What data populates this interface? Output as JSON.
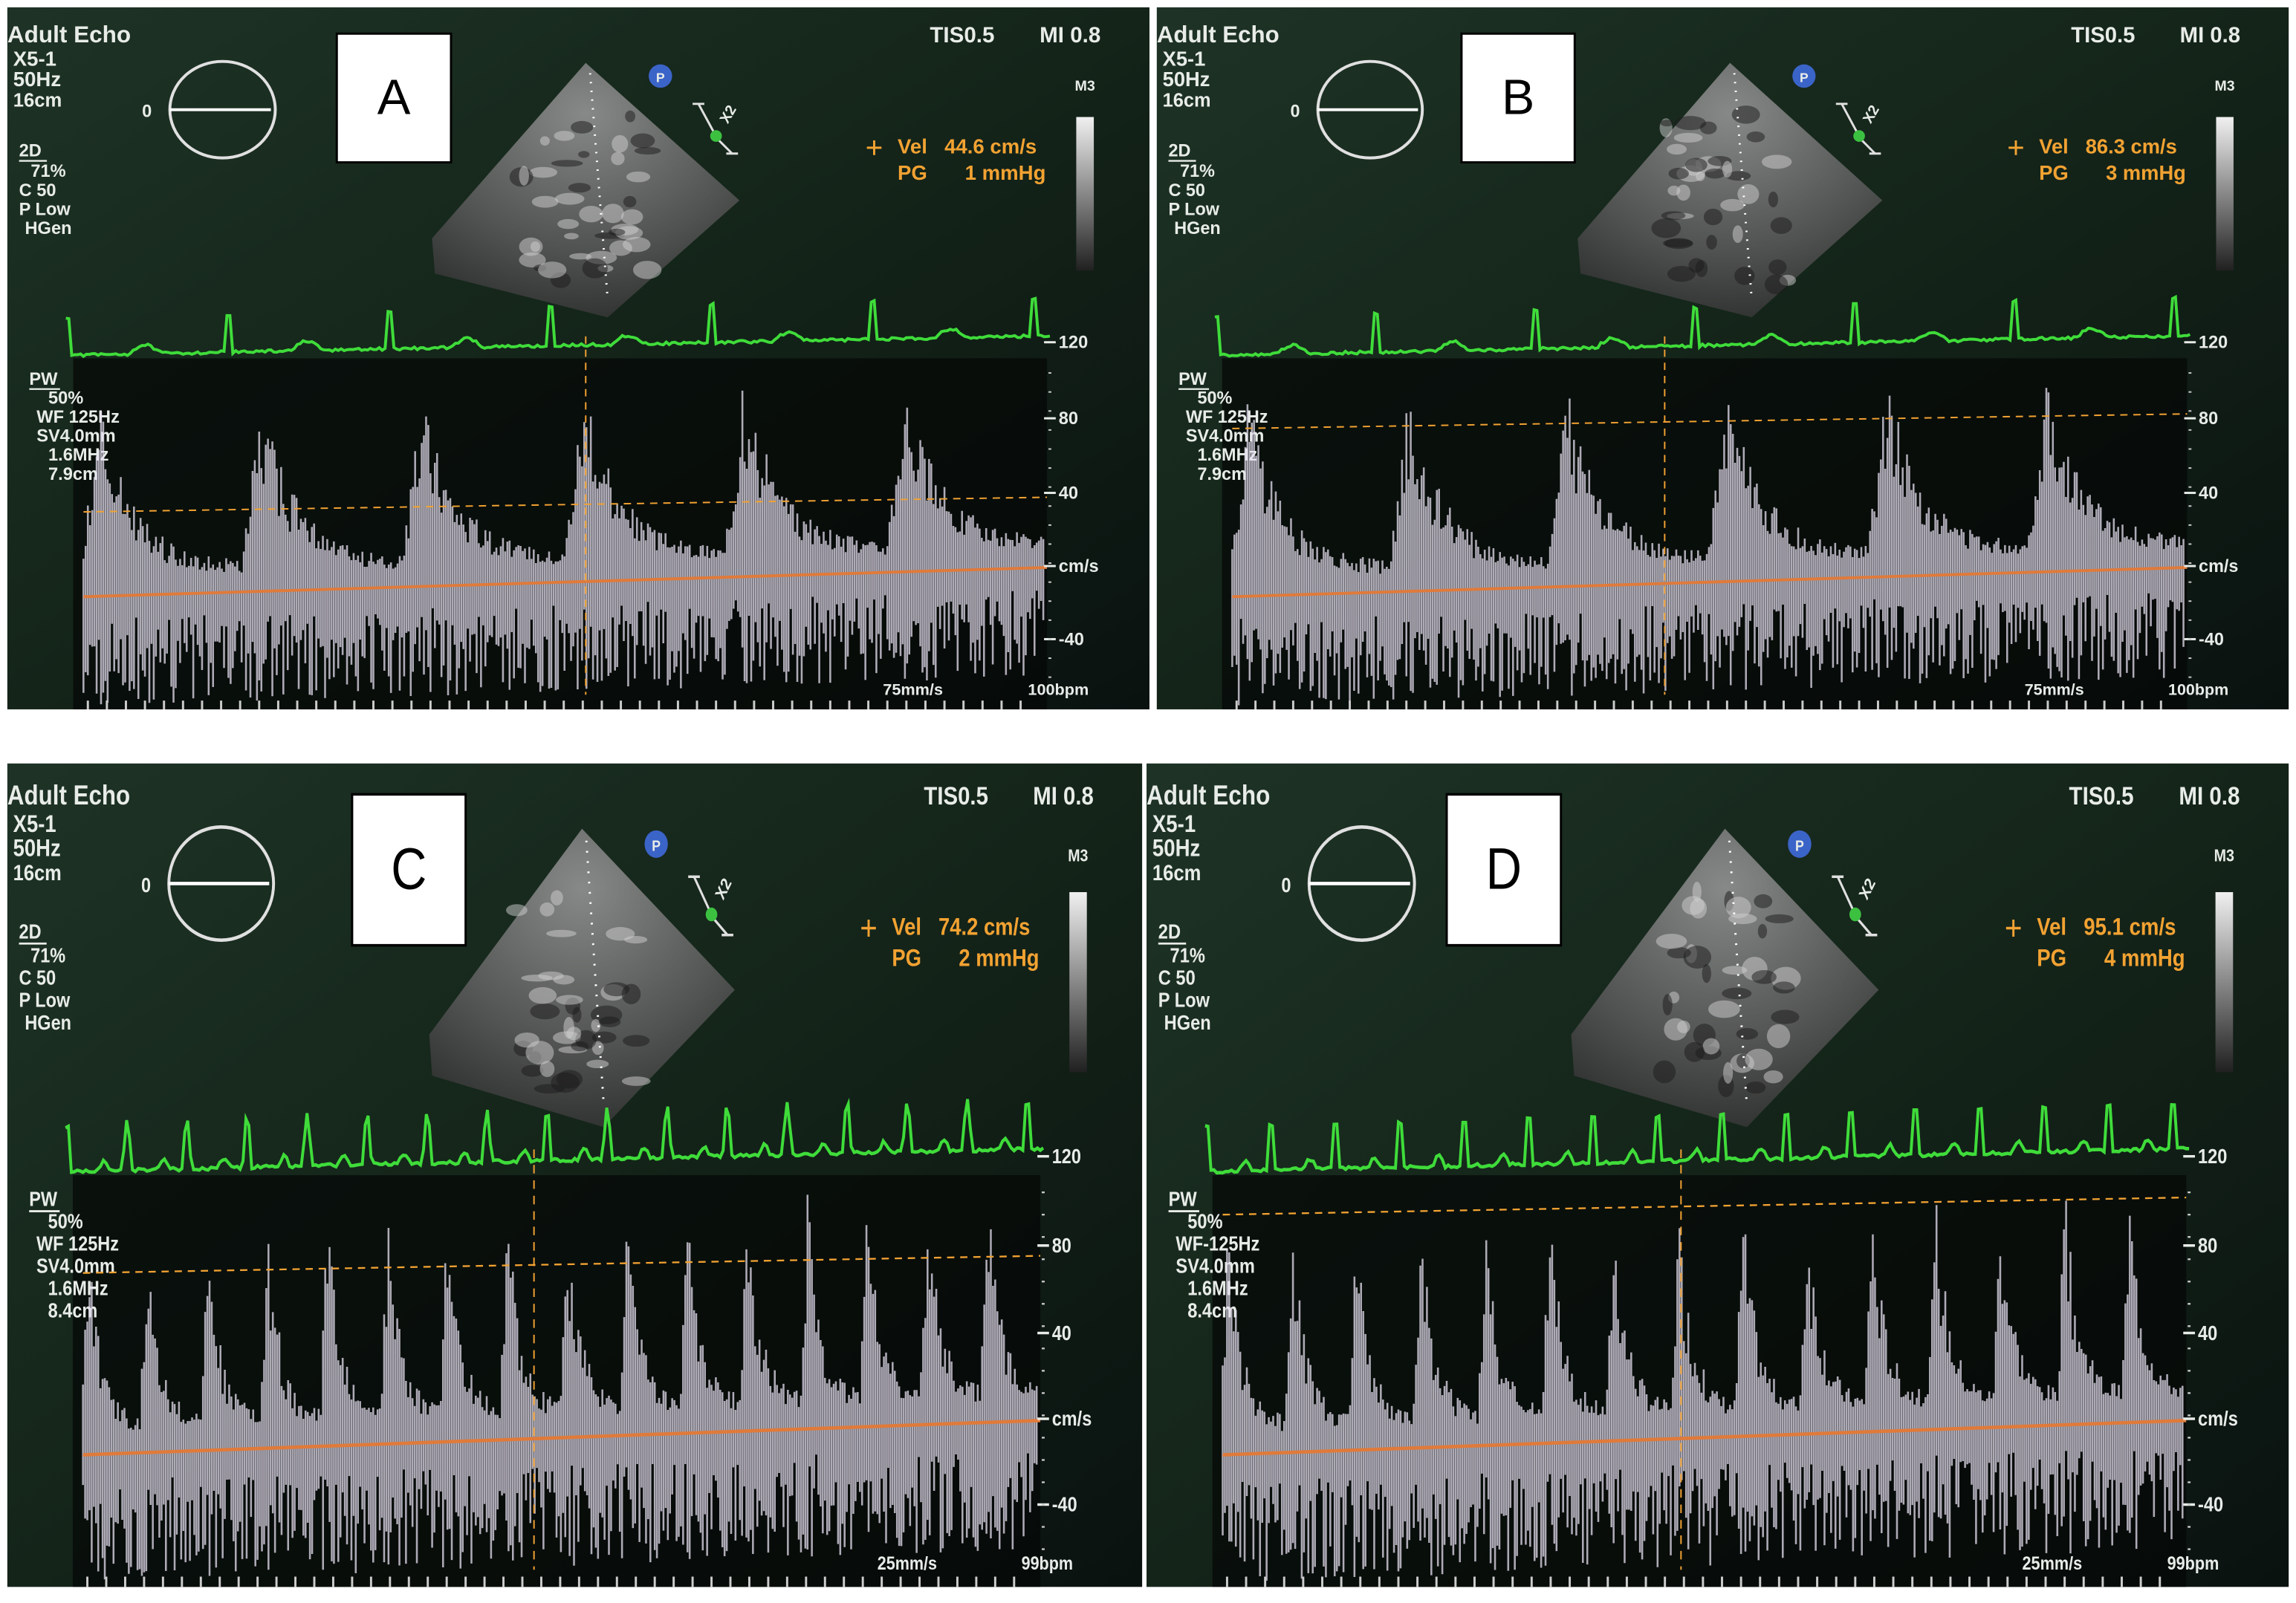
{
  "panels": [
    {
      "label": "A",
      "title": "Adult Echo",
      "probe": "X5-1",
      "frame_rate": "50Hz",
      "depth": "16cm",
      "angle": "0",
      "tis": "TIS0.5",
      "mi": "MI 0.8",
      "map": "M3",
      "mode_2d": [
        "2D",
        "71%",
        "C 50",
        "P Low",
        "HGen"
      ],
      "marker": "P",
      "zoom": "X2",
      "vel_label": "Vel",
      "vel": "44.6 cm/s",
      "pg_label": "PG",
      "pg": "1 mmHg",
      "pw": [
        "PW",
        "50%",
        "WF 125Hz",
        "SV4.0mm",
        "1.6MHz",
        "7.9cm"
      ],
      "scale": [
        "120",
        "80",
        "40",
        "cm/s",
        "-40"
      ],
      "sweep": "75mm/s",
      "hr": "100bpm"
    },
    {
      "label": "B",
      "title": "Adult Echo",
      "probe": "X5-1",
      "frame_rate": "50Hz",
      "depth": "16cm",
      "angle": "0",
      "tis": "TIS0.5",
      "mi": "MI 0.8",
      "map": "M3",
      "mode_2d": [
        "2D",
        "71%",
        "C 50",
        "P Low",
        "HGen"
      ],
      "marker": "P",
      "zoom": "X2",
      "vel_label": "Vel",
      "vel": "86.3 cm/s",
      "pg_label": "PG",
      "pg": "3 mmHg",
      "pw": [
        "PW",
        "50%",
        "WF 125Hz",
        "SV4.0mm",
        "1.6MHz",
        "7.9cm"
      ],
      "scale": [
        "120",
        "80",
        "40",
        "cm/s",
        "-40"
      ],
      "sweep": "75mm/s",
      "hr": "100bpm"
    },
    {
      "label": "C",
      "title": "Adult Echo",
      "probe": "X5-1",
      "frame_rate": "50Hz",
      "depth": "16cm",
      "angle": "0",
      "tis": "TIS0.5",
      "mi": "MI 0.8",
      "map": "M3",
      "mode_2d": [
        "2D",
        "71%",
        "C 50",
        "P Low",
        "HGen"
      ],
      "marker": "P",
      "zoom": "X2",
      "vel_label": "Vel",
      "vel": "74.2 cm/s",
      "pg_label": "PG",
      "pg": "2 mmHg",
      "pw": [
        "PW",
        "50%",
        "WF 125Hz",
        "SV4.0mm",
        "1.6MHz",
        "8.4cm"
      ],
      "scale": [
        "120",
        "80",
        "40",
        "cm/s",
        "-40"
      ],
      "sweep": "25mm/s",
      "hr": "99bpm"
    },
    {
      "label": "D",
      "title": "Adult Echo",
      "probe": "X5-1",
      "frame_rate": "50Hz",
      "depth": "16cm",
      "angle": "0",
      "tis": "TIS0.5",
      "mi": "MI 0.8",
      "map": "M3",
      "mode_2d": [
        "2D",
        "71%",
        "C 50",
        "P Low",
        "HGen"
      ],
      "marker": "P",
      "zoom": "X2",
      "vel_label": "Vel",
      "vel": "95.1 cm/s",
      "pg_label": "PG",
      "pg": "4 mmHg",
      "pw": [
        "PW",
        "50%",
        "WF-125Hz",
        "SV4.0mm",
        "1.6MHz",
        "8.4cm"
      ],
      "scale": [
        "120",
        "80",
        "40",
        "cm/s",
        "-40"
      ],
      "sweep": "25mm/s",
      "hr": "99bpm"
    }
  ]
}
